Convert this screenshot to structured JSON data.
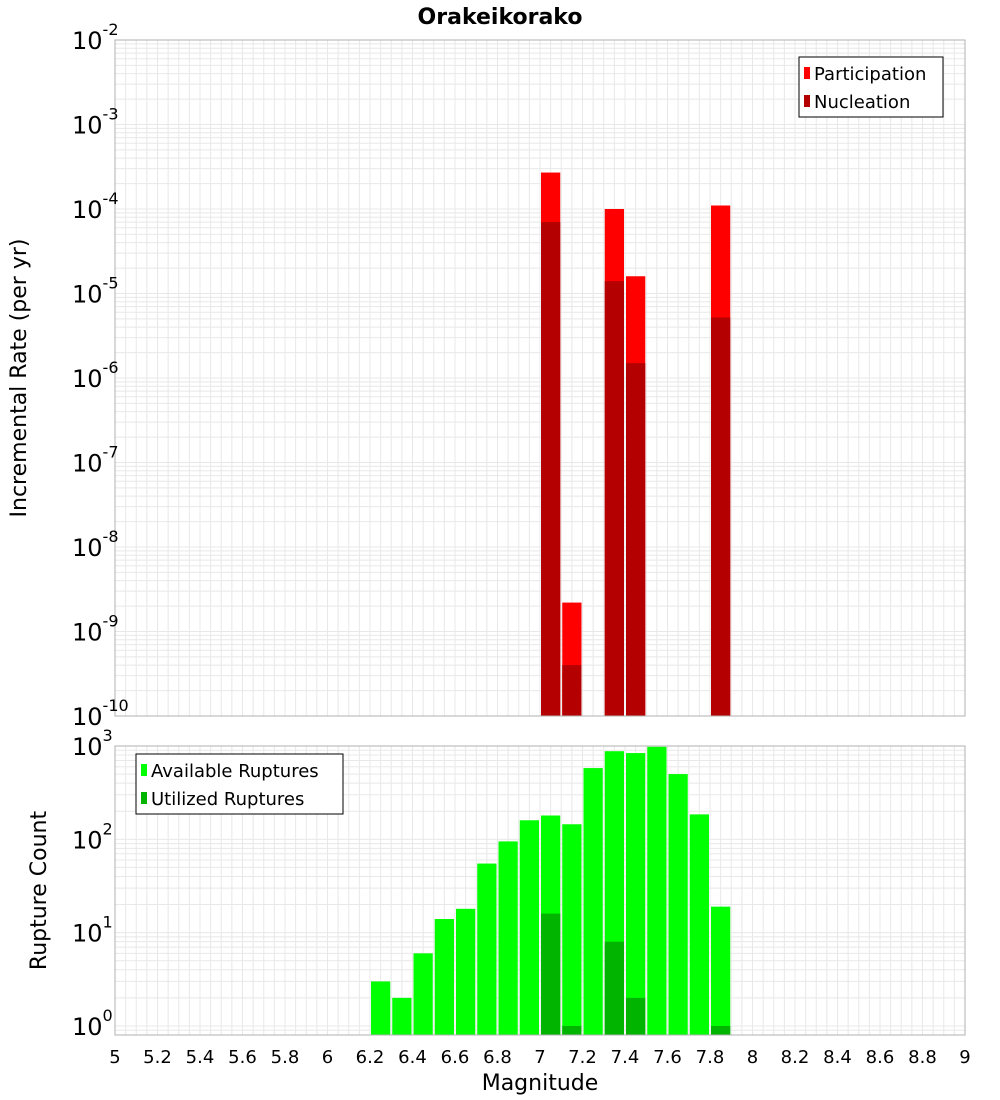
{
  "title": "Orakeikorako",
  "xlabel": "Magnitude",
  "colors": {
    "participation": "#ff0000",
    "nucleation": "#b40000",
    "available": "#00ff00",
    "utilized": "#00b400",
    "grid": "#e8e8e8",
    "frame": "#b0b0b0"
  },
  "chart_data": [
    {
      "type": "bar",
      "ylabel": "Incremental Rate (per yr)",
      "yscale": "log",
      "ylim": [
        1e-10,
        0.01
      ],
      "xlim": [
        5,
        9
      ],
      "bar_width": 0.1,
      "ytick_base": "10",
      "ytick_exponents": [
        "-10",
        "-9",
        "-8",
        "-7",
        "-6",
        "-5",
        "-4",
        "-3",
        "-2"
      ],
      "legend": {
        "position": "top-right",
        "entries": [
          "Participation",
          "Nucleation"
        ]
      },
      "series": [
        {
          "name": "Participation",
          "x": [
            7.05,
            7.15,
            7.35,
            7.45,
            7.85
          ],
          "values": [
            0.00027,
            2.2e-09,
            0.0001,
            1.6e-05,
            0.00011
          ]
        },
        {
          "name": "Nucleation",
          "x": [
            7.05,
            7.15,
            7.35,
            7.45,
            7.85
          ],
          "values": [
            7e-05,
            4e-10,
            1.4e-05,
            1.5e-06,
            5.2e-06
          ]
        }
      ]
    },
    {
      "type": "bar",
      "ylabel": "Rupture Count",
      "yscale": "log",
      "ylim": [
        0.8,
        1000
      ],
      "xlim": [
        5,
        9
      ],
      "bar_width": 0.1,
      "ytick_base": "10",
      "ytick_exponents": [
        "0",
        "1",
        "2",
        "3"
      ],
      "legend": {
        "position": "top-left",
        "entries": [
          "Available Ruptures",
          "Utilized Ruptures"
        ]
      },
      "series": [
        {
          "name": "Available Ruptures",
          "x": [
            6.25,
            6.35,
            6.45,
            6.55,
            6.65,
            6.75,
            6.85,
            6.95,
            7.05,
            7.15,
            7.25,
            7.35,
            7.45,
            7.55,
            7.65,
            7.75,
            7.85
          ],
          "values": [
            3,
            2,
            6,
            14,
            18,
            55,
            95,
            160,
            180,
            145,
            580,
            880,
            840,
            980,
            500,
            185,
            19
          ]
        },
        {
          "name": "Utilized Ruptures",
          "x": [
            7.05,
            7.15,
            7.35,
            7.45,
            7.85
          ],
          "values": [
            16,
            1,
            8,
            2,
            1
          ]
        }
      ]
    }
  ],
  "xticks": [
    "5",
    "5.2",
    "5.4",
    "5.6",
    "5.8",
    "6",
    "6.2",
    "6.4",
    "6.6",
    "6.8",
    "7",
    "7.2",
    "7.4",
    "7.6",
    "7.8",
    "8",
    "8.2",
    "8.4",
    "8.6",
    "8.8",
    "9"
  ]
}
